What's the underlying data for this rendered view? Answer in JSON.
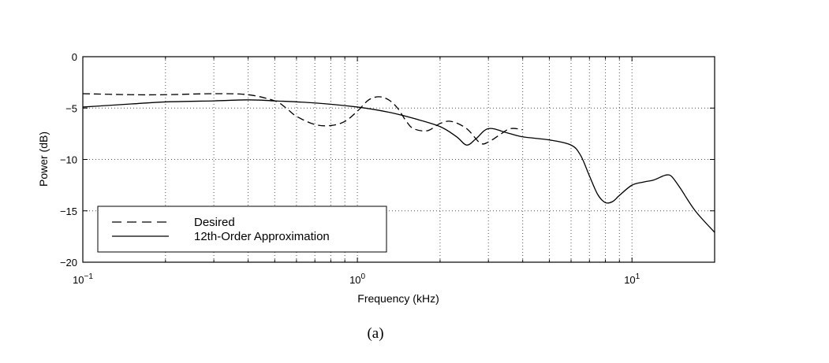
{
  "chart_data": {
    "type": "line",
    "xlabel": "Frequency (kHz)",
    "ylabel": "Power (dB)",
    "x_scale": "log",
    "xlim": [
      0.1,
      20
    ],
    "ylim": [
      -20,
      0
    ],
    "grid": true,
    "legend_position": "bottom-left",
    "x_ticks": [
      {
        "value": 0.1,
        "base": "10",
        "exp": "−1"
      },
      {
        "value": 1,
        "base": "10",
        "exp": "0"
      },
      {
        "value": 10,
        "base": "10",
        "exp": "1"
      }
    ],
    "y_ticks": [
      {
        "value": 0,
        "label": "0"
      },
      {
        "value": -5,
        "label": "−5"
      },
      {
        "value": -10,
        "label": "−10"
      },
      {
        "value": -15,
        "label": "−15"
      },
      {
        "value": -20,
        "label": "−20"
      }
    ],
    "series": [
      {
        "name": "Desired",
        "style": "dashed",
        "color": "#000000",
        "x": [
          0.1,
          0.15,
          0.2,
          0.3,
          0.4,
          0.5,
          0.55,
          0.6,
          0.7,
          0.8,
          0.9,
          1.0,
          1.1,
          1.2,
          1.3,
          1.4,
          1.5,
          1.6,
          1.8,
          2.0,
          2.2,
          2.5,
          2.8,
          3.0,
          3.3,
          3.6,
          4.0
        ],
        "y": [
          -3.6,
          -3.7,
          -3.7,
          -3.6,
          -3.7,
          -4.3,
          -5.0,
          -5.8,
          -6.6,
          -6.7,
          -6.3,
          -5.3,
          -4.2,
          -3.9,
          -4.2,
          -5.0,
          -6.2,
          -7.0,
          -7.2,
          -6.5,
          -6.3,
          -7.0,
          -8.4,
          -8.3,
          -7.6,
          -7.0,
          -7.1
        ]
      },
      {
        "name": "12th-Order Approximation",
        "style": "solid",
        "color": "#000000",
        "x": [
          0.1,
          0.15,
          0.2,
          0.3,
          0.4,
          0.5,
          0.7,
          1.0,
          1.3,
          1.6,
          2.0,
          2.3,
          2.5,
          2.7,
          3.0,
          3.5,
          4.0,
          5.0,
          6.0,
          6.5,
          7.0,
          7.5,
          8.0,
          8.5,
          9.0,
          10.0,
          11.0,
          12.0,
          13.0,
          13.5,
          14.0,
          15.0,
          17.0,
          20.0
        ],
        "y": [
          -4.9,
          -4.6,
          -4.4,
          -4.3,
          -4.2,
          -4.3,
          -4.5,
          -4.9,
          -5.4,
          -6.0,
          -6.8,
          -7.8,
          -8.6,
          -8.0,
          -7.0,
          -7.4,
          -7.8,
          -8.1,
          -8.6,
          -9.6,
          -11.6,
          -13.4,
          -14.2,
          -14.1,
          -13.5,
          -12.5,
          -12.2,
          -12.0,
          -11.6,
          -11.5,
          -11.7,
          -12.8,
          -15.0,
          -17.1
        ]
      }
    ]
  },
  "caption": "(a)"
}
